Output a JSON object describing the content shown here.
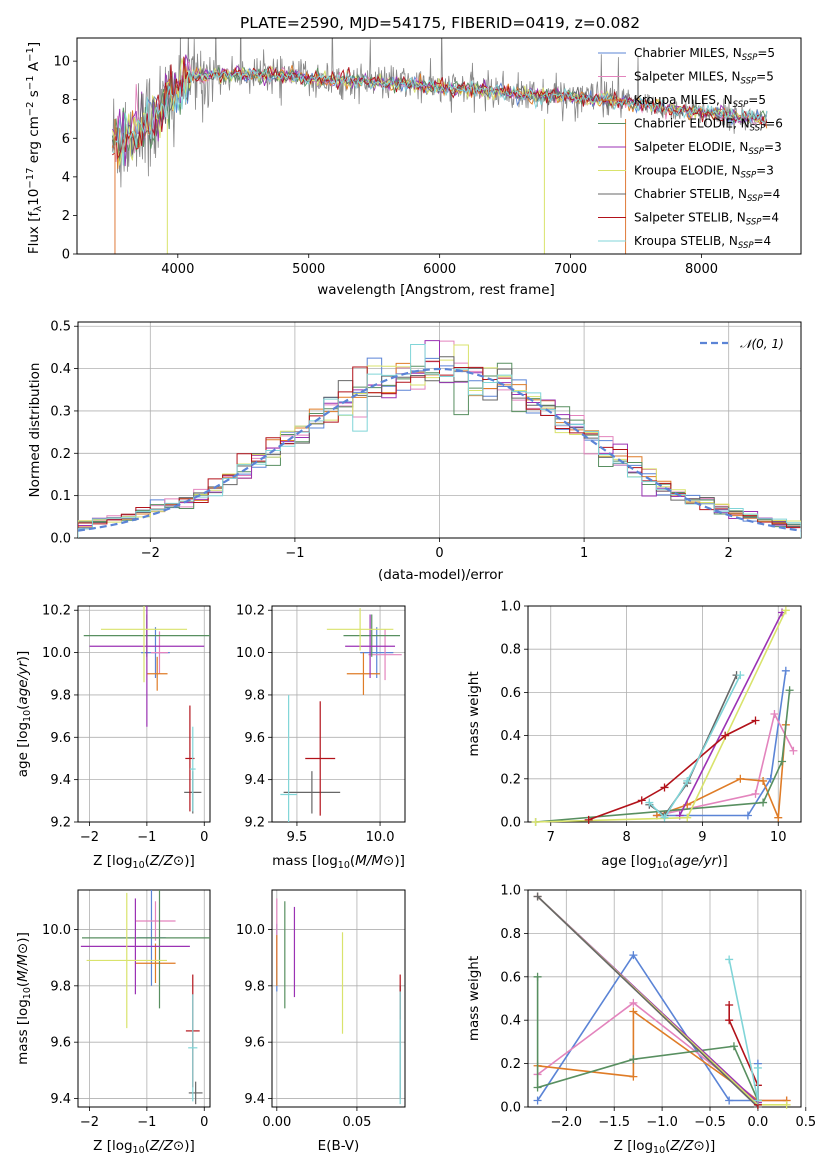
{
  "title": "PLATE=2590, MJD=54175, FIBERID=0419, z=0.082",
  "colors": {
    "Chabrier MILES": "#5b84d6",
    "Salpeter MILES": "#e384bd",
    "Kroupa MILES": "#df7c27",
    "Chabrier ELODIE": "#588f60",
    "Salpeter ELODIE": "#9b32b4",
    "Kroupa ELODIE": "#d9e36c",
    "Chabrier STELIB": "#676767",
    "Salpeter STELIB": "#b2121a",
    "Kroupa STELIB": "#80d5d8"
  },
  "legend_spectrum": [
    {
      "model": "Chabrier MILES",
      "label": "Chabrier MILES, N",
      "n": "5"
    },
    {
      "model": "Salpeter MILES",
      "label": "Salpeter MILES, N",
      "n": "5"
    },
    {
      "model": "Kroupa MILES",
      "label": "Kroupa MILES, N",
      "n": "5"
    },
    {
      "model": "Chabrier ELODIE",
      "label": "Chabrier ELODIE, N",
      "n": "6"
    },
    {
      "model": "Salpeter ELODIE",
      "label": "Salpeter ELODIE, N",
      "n": "3"
    },
    {
      "model": "Kroupa ELODIE",
      "label": "Kroupa ELODIE, N",
      "n": "3"
    },
    {
      "model": "Chabrier STELIB",
      "label": "Chabrier STELIB, N",
      "n": "4"
    },
    {
      "model": "Salpeter STELIB",
      "label": "Salpeter STELIB, N",
      "n": "4"
    },
    {
      "model": "Kroupa STELIB",
      "label": "Kroupa STELIB, N",
      "n": "4"
    }
  ],
  "legend_sub": "SSP",
  "chart_data": [
    {
      "id": "spectrum",
      "type": "line",
      "xlabel": "wavelength [Angstrom, rest frame]",
      "ylabel": "Flux [f",
      "ylabel_parts": [
        "Flux [f",
        "λ",
        "10",
        "−17",
        " erg cm",
        "−2",
        " s",
        "−1",
        " A",
        "−1",
        "]"
      ],
      "xlim": [
        3230,
        8760
      ],
      "ylim": [
        0,
        11.2
      ],
      "xticks": [
        4000,
        5000,
        6000,
        7000,
        8000
      ],
      "yticks": [
        0,
        2,
        4,
        6,
        8,
        10
      ],
      "grid": false,
      "legend": "upper right",
      "data_continuum": {
        "x": [
          3500,
          3600,
          3700,
          3800,
          3900,
          4000,
          4100,
          4300,
          4500,
          4700,
          4900,
          5100,
          5300,
          5500,
          5700,
          5900,
          6100,
          6300,
          6500,
          6700,
          6900,
          7100,
          7300,
          7500,
          7700,
          7900,
          8100,
          8300,
          8500
        ],
        "y": [
          5.8,
          6.1,
          6.4,
          6.9,
          7.6,
          8.7,
          9.2,
          9.3,
          9.3,
          9.25,
          9.2,
          9.0,
          9.0,
          8.9,
          8.9,
          8.7,
          8.6,
          8.5,
          8.4,
          8.2,
          8.2,
          8.1,
          8.0,
          7.8,
          7.6,
          7.4,
          7.3,
          7.1,
          7.0
        ]
      }
    },
    {
      "id": "residuals",
      "type": "histogram",
      "xlabel": "(data-model)/error",
      "ylabel": "Normed distribution",
      "xlim": [
        -2.5,
        2.5
      ],
      "ylim": [
        0,
        0.51
      ],
      "xticks": [
        -2,
        -1,
        0,
        1,
        2
      ],
      "yticks": [
        0.0,
        0.1,
        0.2,
        0.3,
        0.4,
        0.5
      ],
      "grid": true,
      "legend": "upper right",
      "reference_curve": "𝒩(0, 1)",
      "bin_width": 0.1
    },
    {
      "id": "age_vs_Z",
      "type": "errorbar",
      "xlabel": "Z [log10(Z/Z⊙)]",
      "ylabel": "age [log10(age/yr)]",
      "xlim": [
        -2.2,
        0.1
      ],
      "ylim": [
        9.2,
        10.22
      ],
      "xticks": [
        -2,
        -1,
        0
      ],
      "yticks": [
        9.2,
        9.4,
        9.6,
        9.8,
        10.0,
        10.2
      ],
      "grid": true,
      "points": [
        {
          "model": "Chabrier MILES",
          "x": -0.85,
          "y": 10.0,
          "xerr": 0.25,
          "yerr": 0.12
        },
        {
          "model": "Salpeter MILES",
          "x": -0.78,
          "y": 10.0,
          "xerr": 0.15,
          "yerr": 0.1
        },
        {
          "model": "Kroupa MILES",
          "x": -0.82,
          "y": 9.9,
          "xerr": 0.18,
          "yerr": 0.08
        },
        {
          "model": "Chabrier ELODIE",
          "x": -1.0,
          "y": 10.08,
          "xerr": 1.1,
          "yerr": 0.1
        },
        {
          "model": "Salpeter ELODIE",
          "x": -1.0,
          "y": 10.03,
          "xerr": 1.0,
          "yerr": 0.38
        },
        {
          "model": "Kroupa ELODIE",
          "x": -1.05,
          "y": 10.11,
          "xerr": 0.75,
          "yerr": 0.25
        },
        {
          "model": "Chabrier STELIB",
          "x": -0.2,
          "y": 9.34,
          "xerr": 0.15,
          "yerr": 0.1
        },
        {
          "model": "Salpeter STELIB",
          "x": -0.25,
          "y": 9.5,
          "xerr": 0.08,
          "yerr": 0.25
        },
        {
          "model": "Kroupa STELIB",
          "x": -0.2,
          "y": 9.45,
          "xerr": 0.05,
          "yerr": 0.2
        }
      ]
    },
    {
      "id": "age_vs_mass",
      "type": "errorbar",
      "xlabel": "mass [log10(M/M⊙)]",
      "ylabel": "",
      "xlim": [
        9.35,
        10.15
      ],
      "ylim": [
        9.2,
        10.22
      ],
      "xticks": [
        9.5,
        10.0
      ],
      "yticks": [
        9.2,
        9.4,
        9.6,
        9.8,
        10.0,
        10.2
      ],
      "grid": true,
      "points": [
        {
          "model": "Chabrier MILES",
          "x": 9.98,
          "y": 10.0,
          "xerr": 0.1,
          "yerr": 0.12
        },
        {
          "model": "Salpeter MILES",
          "x": 10.03,
          "y": 9.99,
          "xerr": 0.1,
          "yerr": 0.12
        },
        {
          "model": "Kroupa MILES",
          "x": 9.9,
          "y": 9.9,
          "xerr": 0.1,
          "yerr": 0.1
        },
        {
          "model": "Chabrier ELODIE",
          "x": 9.95,
          "y": 10.08,
          "xerr": 0.17,
          "yerr": 0.1
        },
        {
          "model": "Salpeter ELODIE",
          "x": 9.94,
          "y": 10.03,
          "xerr": 0.15,
          "yerr": 0.15
        },
        {
          "model": "Kroupa ELODIE",
          "x": 9.88,
          "y": 10.11,
          "xerr": 0.2,
          "yerr": 0.1
        },
        {
          "model": "Chabrier STELIB",
          "x": 9.59,
          "y": 9.34,
          "xerr": 0.17,
          "yerr": 0.1
        },
        {
          "model": "Salpeter STELIB",
          "x": 9.64,
          "y": 9.5,
          "xerr": 0.09,
          "yerr": 0.27
        },
        {
          "model": "Kroupa STELIB",
          "x": 9.45,
          "y": 9.33,
          "xerr": 0.05,
          "yerr": 0.47
        }
      ]
    },
    {
      "id": "weight_vs_age",
      "type": "line",
      "xlabel": "age [log10(age/yr)]",
      "ylabel": "mass weight",
      "xlim": [
        6.7,
        10.3
      ],
      "ylim": [
        0,
        1.0
      ],
      "xticks": [
        7,
        8,
        9,
        10
      ],
      "yticks": [
        0.0,
        0.2,
        0.4,
        0.6,
        0.8,
        1.0
      ],
      "grid": true,
      "series": [
        {
          "model": "Chabrier MILES",
          "x": [
            8.4,
            9.6,
            9.9,
            10.1
          ],
          "y": [
            0.03,
            0.03,
            0.2,
            0.7
          ]
        },
        {
          "model": "Salpeter MILES",
          "x": [
            8.4,
            9.7,
            9.95,
            10.2
          ],
          "y": [
            0.03,
            0.13,
            0.5,
            0.33
          ]
        },
        {
          "model": "Kroupa MILES",
          "x": [
            8.4,
            8.8,
            9.5,
            9.8,
            10.0,
            10.1
          ],
          "y": [
            0.03,
            0.08,
            0.2,
            0.19,
            0.02,
            0.45
          ]
        },
        {
          "model": "Chabrier ELODIE",
          "x": [
            6.8,
            9.8,
            10.05,
            10.15
          ],
          "y": [
            0.0,
            0.09,
            0.28,
            0.61
          ]
        },
        {
          "model": "Salpeter ELODIE",
          "x": [
            8.7,
            10.05
          ],
          "y": [
            0.03,
            0.97
          ]
        },
        {
          "model": "Kroupa ELODIE",
          "x": [
            6.8,
            8.8,
            10.1
          ],
          "y": [
            0.0,
            0.02,
            0.98
          ]
        },
        {
          "model": "Chabrier STELIB",
          "x": [
            8.3,
            8.5,
            8.8,
            9.45
          ],
          "y": [
            0.08,
            0.03,
            0.18,
            0.68
          ]
        },
        {
          "model": "Salpeter STELIB",
          "x": [
            7.5,
            8.2,
            8.5,
            9.3,
            9.7
          ],
          "y": [
            0.01,
            0.1,
            0.16,
            0.4,
            0.47
          ]
        },
        {
          "model": "Kroupa STELIB",
          "x": [
            8.3,
            8.5,
            8.8,
            9.5
          ],
          "y": [
            0.09,
            0.02,
            0.19,
            0.68
          ]
        }
      ]
    },
    {
      "id": "mass_vs_Z",
      "type": "errorbar",
      "xlabel": "Z [log10(Z/Z⊙)]",
      "ylabel": "mass [log10(M/M⊙)]",
      "xlim": [
        -2.2,
        0.1
      ],
      "ylim": [
        9.37,
        10.14
      ],
      "xticks": [
        -2,
        -1,
        0
      ],
      "yticks": [
        9.4,
        9.6,
        9.8,
        10.0
      ],
      "grid": true,
      "points": [
        {
          "model": "Chabrier MILES",
          "x": -0.92,
          "y": 9.97,
          "xerr": 0.25,
          "yerr": 0.17
        },
        {
          "model": "Salpeter MILES",
          "x": -0.85,
          "y": 10.03,
          "xerr": 0.35,
          "yerr": 0.07
        },
        {
          "model": "Kroupa MILES",
          "x": -0.85,
          "y": 9.88,
          "xerr": 0.35,
          "yerr": 0.07
        },
        {
          "model": "Chabrier ELODIE",
          "x": -0.78,
          "y": 9.97,
          "xerr": 1.35,
          "yerr": 0.25
        },
        {
          "model": "Salpeter ELODIE",
          "x": -1.2,
          "y": 9.94,
          "xerr": 0.95,
          "yerr": 0.17
        },
        {
          "model": "Kroupa ELODIE",
          "x": -1.35,
          "y": 9.89,
          "xerr": 0.7,
          "yerr": 0.24
        },
        {
          "model": "Chabrier STELIB",
          "x": -0.15,
          "y": 9.42,
          "xerr": 0.12,
          "yerr": 0.04
        },
        {
          "model": "Salpeter STELIB",
          "x": -0.2,
          "y": 9.64,
          "xerr": 0.12,
          "yerr": 0.2
        },
        {
          "model": "Kroupa STELIB",
          "x": -0.2,
          "y": 9.58,
          "xerr": 0.08,
          "yerr": 0.19
        }
      ]
    },
    {
      "id": "mass_vs_ebv",
      "type": "errorbar",
      "xlabel": "E(B-V)",
      "ylabel": "",
      "xlim": [
        -0.003,
        0.08
      ],
      "ylim": [
        9.37,
        10.14
      ],
      "xticks": [
        0.0,
        0.05
      ],
      "xticklabels": [
        "0.00",
        "0.05"
      ],
      "yticks": [
        9.4,
        9.6,
        9.8,
        10.0
      ],
      "grid": true,
      "points": [
        {
          "model": "Chabrier MILES",
          "x": 0.0,
          "y": 9.9,
          "xerr": 0.0,
          "yerr": 0.12
        },
        {
          "model": "Salpeter MILES",
          "x": 0.0,
          "y": 9.99,
          "xerr": 0.0,
          "yerr": 0.12
        },
        {
          "model": "Kroupa MILES",
          "x": 0.0,
          "y": 9.89,
          "xerr": 0.0,
          "yerr": 0.09
        },
        {
          "model": "Chabrier ELODIE",
          "x": 0.005,
          "y": 9.91,
          "xerr": 0.0,
          "yerr": 0.19
        },
        {
          "model": "Salpeter ELODIE",
          "x": 0.011,
          "y": 9.92,
          "xerr": 0.0,
          "yerr": 0.16
        },
        {
          "model": "Kroupa ELODIE",
          "x": 0.041,
          "y": 9.81,
          "xerr": 0.0,
          "yerr": 0.18
        },
        {
          "model": "Chabrier STELIB",
          "x": 0.077,
          "y": 9.6,
          "xerr": 0.0,
          "yerr": 0.2
        },
        {
          "model": "Salpeter STELIB",
          "x": 0.077,
          "y": 9.76,
          "xerr": 0.0,
          "yerr": 0.08
        },
        {
          "model": "Kroupa STELIB",
          "x": 0.077,
          "y": 9.58,
          "xerr": 0.0,
          "yerr": 0.2
        }
      ]
    },
    {
      "id": "weight_vs_Z",
      "type": "line",
      "xlabel": "Z [log10(Z/Z⊙)]",
      "ylabel": "mass weight",
      "xlim": [
        -2.4,
        0.45
      ],
      "ylim": [
        0,
        1.0
      ],
      "xticks": [
        -2.0,
        -1.5,
        -1.0,
        -0.5,
        0.0,
        0.5
      ],
      "yticks": [
        0.0,
        0.2,
        0.4,
        0.6,
        0.8,
        1.0
      ],
      "grid": true,
      "series": [
        {
          "model": "Chabrier MILES",
          "x": [
            -2.3,
            -1.3,
            -0.3,
            0.0,
            0.0
          ],
          "y": [
            0.03,
            0.7,
            0.03,
            0.03,
            0.2
          ]
        },
        {
          "model": "Salpeter MILES",
          "x": [
            -2.3,
            -1.3,
            0.0,
            0.3
          ],
          "y": [
            0.15,
            0.48,
            0.03,
            0.03
          ]
        },
        {
          "model": "Kroupa MILES",
          "x": [
            -2.3,
            -1.3,
            -1.3,
            0.0,
            0.3
          ],
          "y": [
            0.19,
            0.14,
            0.44,
            0.03,
            0.03
          ]
        },
        {
          "model": "Chabrier ELODIE",
          "x": [
            -2.3,
            -2.3,
            -1.3,
            -0.25,
            0.0
          ],
          "y": [
            0.6,
            0.09,
            0.22,
            0.28,
            0.03
          ]
        },
        {
          "model": "Salpeter ELODIE",
          "x": [
            -2.3,
            0.0
          ],
          "y": [
            0.97,
            0.02
          ]
        },
        {
          "model": "Kroupa ELODIE",
          "x": [
            -2.3,
            0.0,
            0.3
          ],
          "y": [
            0.97,
            0.01,
            0.01
          ]
        },
        {
          "model": "Chabrier STELIB",
          "x": [
            -2.3,
            0.0
          ],
          "y": [
            0.97,
            0.0
          ]
        },
        {
          "model": "Salpeter STELIB",
          "x": [
            -0.3,
            -0.3,
            0.0,
            0.0
          ],
          "y": [
            0.47,
            0.4,
            0.1,
            0.01
          ]
        },
        {
          "model": "Kroupa STELIB",
          "x": [
            -0.3,
            0.0,
            0.0
          ],
          "y": [
            0.68,
            0.03,
            0.18
          ]
        }
      ]
    }
  ]
}
